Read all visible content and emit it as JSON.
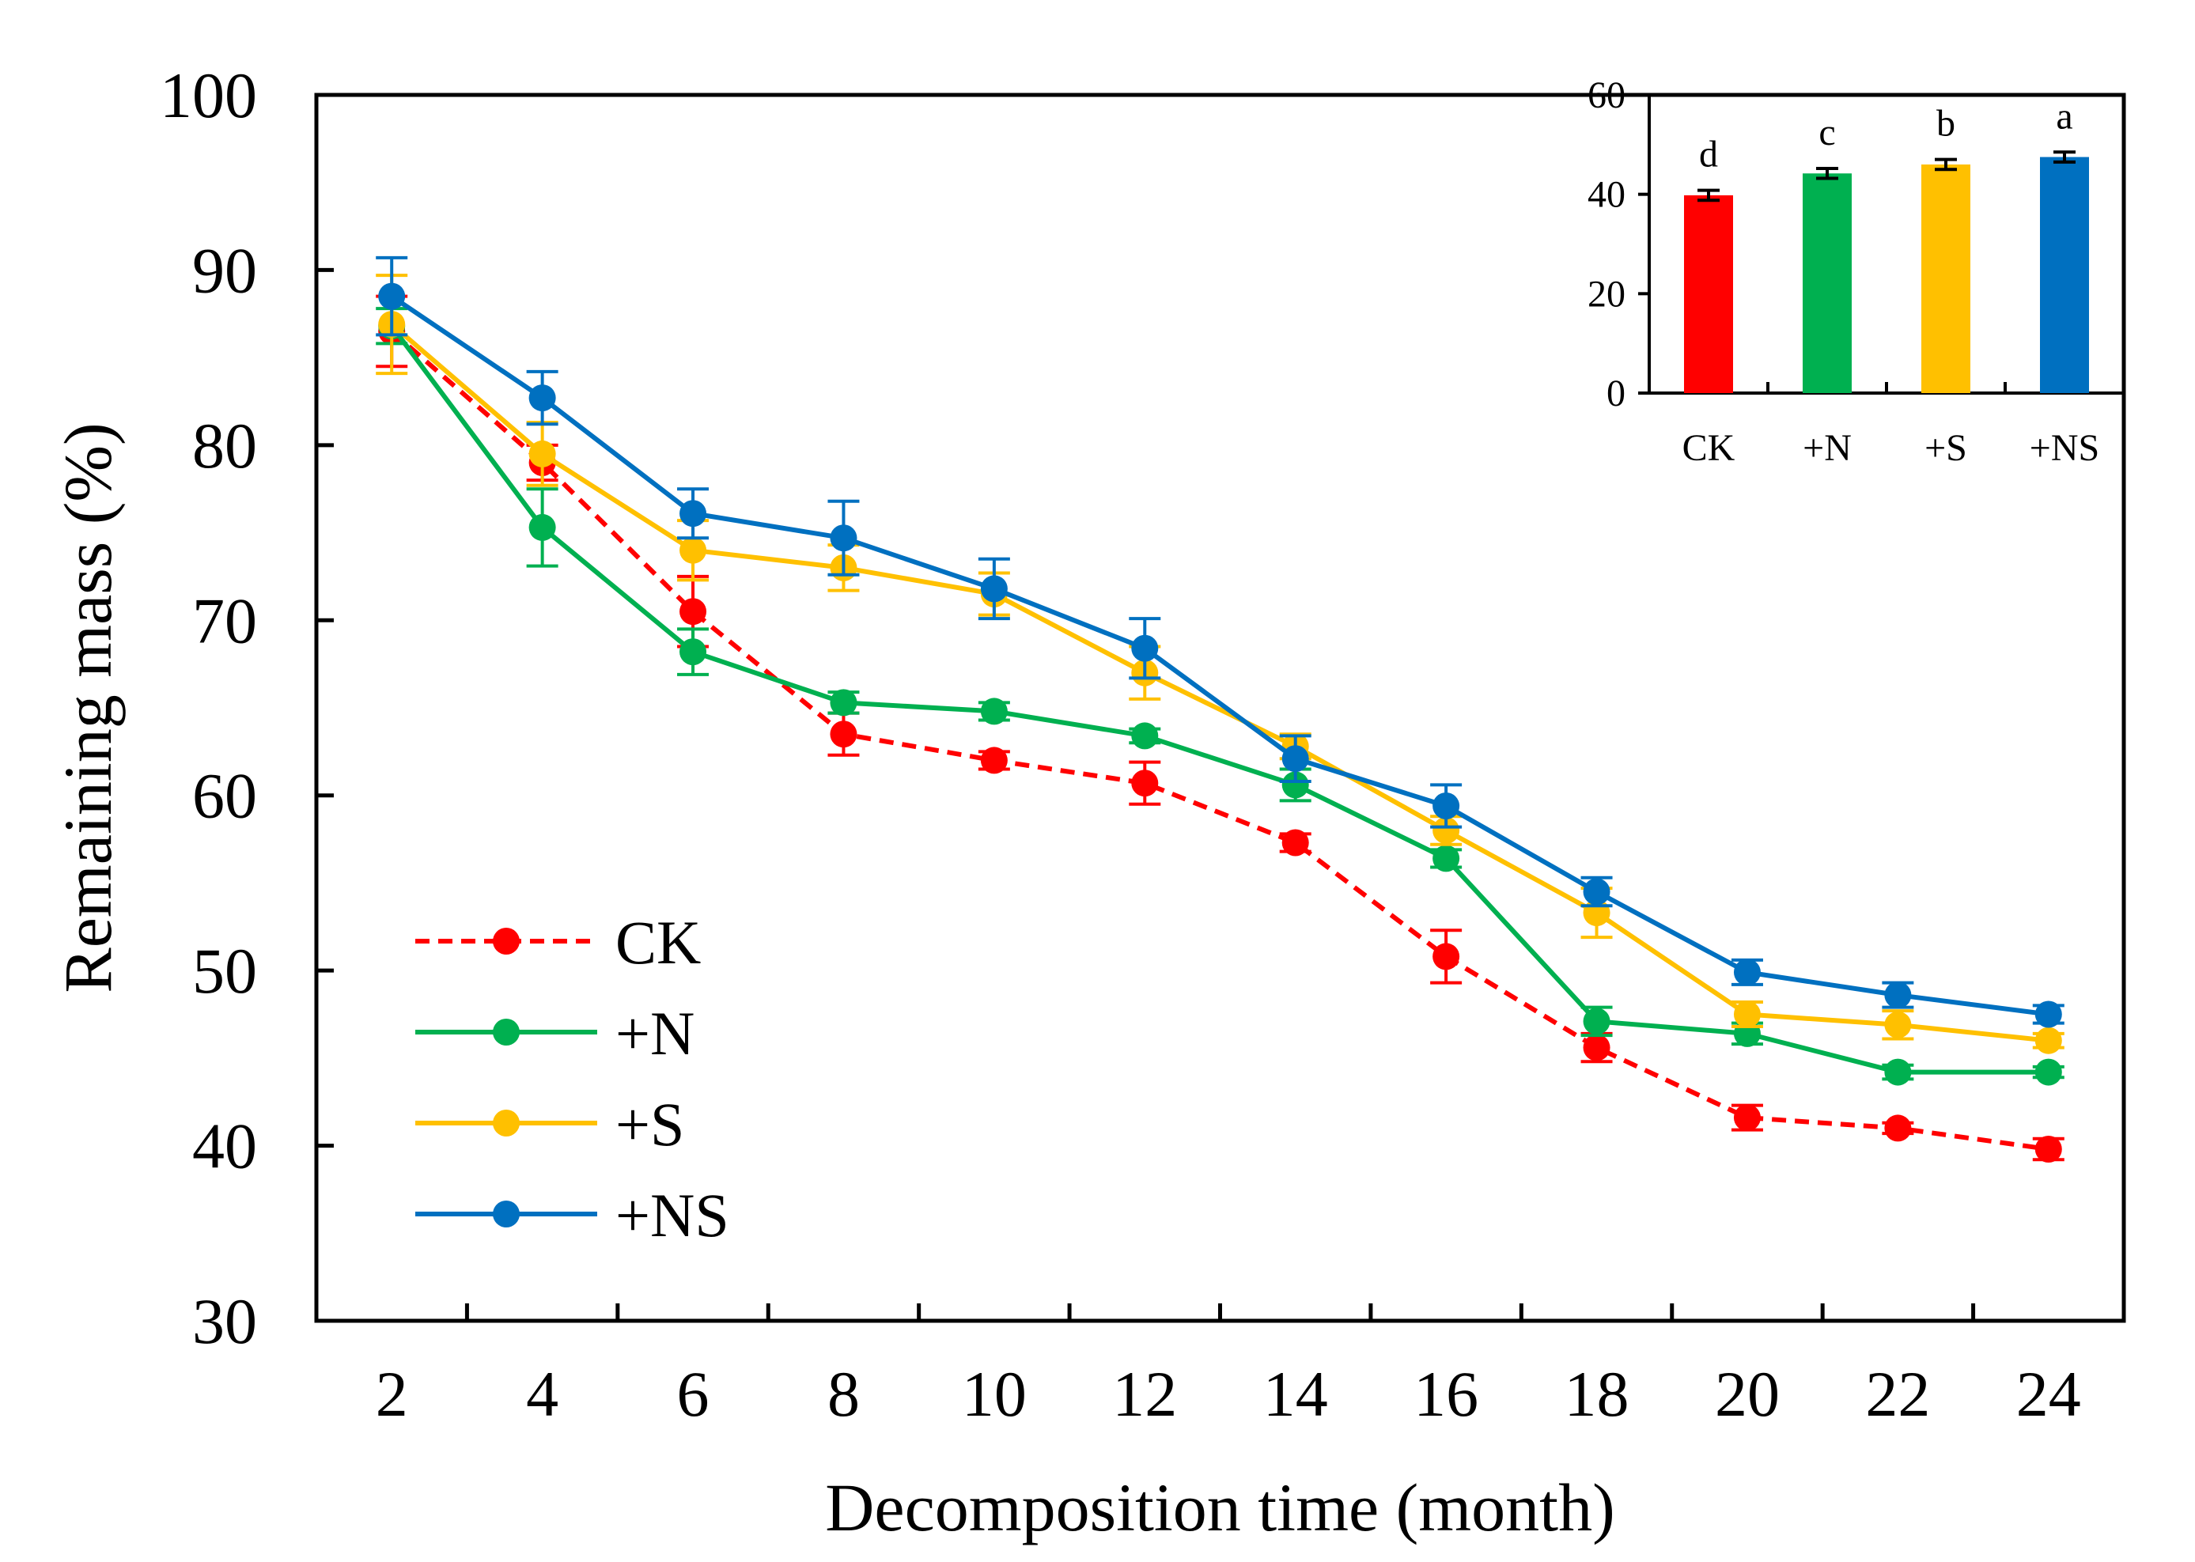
{
  "chart_data": [
    {
      "type": "line",
      "title": "",
      "xlabel": "Decomposition time (month)",
      "ylabel": "Remaining mass (%)",
      "xlim": [
        1,
        25
      ],
      "ylim": [
        30,
        100
      ],
      "xticks": [
        2,
        4,
        6,
        8,
        10,
        12,
        14,
        16,
        18,
        20,
        22,
        24
      ],
      "yticks": [
        30,
        40,
        50,
        60,
        70,
        80,
        90,
        100
      ],
      "x": [
        2,
        4,
        6,
        8,
        10,
        12,
        14,
        16,
        18,
        20,
        22,
        24
      ],
      "grid": false,
      "legend": "bottom-left",
      "series": [
        {
          "name": "CK",
          "color": "#FF0000",
          "dashed": true,
          "values": [
            86.5,
            79.0,
            70.5,
            63.5,
            62.0,
            60.7,
            57.3,
            50.8,
            45.6,
            41.6,
            41.0,
            39.8
          ],
          "errors": [
            2.0,
            1.0,
            2.0,
            1.2,
            0.5,
            1.2,
            0.5,
            1.5,
            0.8,
            0.7,
            0.3,
            0.6
          ]
        },
        {
          "name": "+N",
          "color": "#00B050",
          "dashed": false,
          "values": [
            86.8,
            75.3,
            68.2,
            65.3,
            64.8,
            63.4,
            60.6,
            56.4,
            47.1,
            46.4,
            44.2,
            44.2
          ],
          "errors": [
            1.0,
            2.2,
            1.3,
            0.6,
            0.5,
            0.4,
            0.9,
            0.5,
            0.8,
            0.6,
            0.4,
            0.3
          ]
        },
        {
          "name": "+S",
          "color": "#FFC000",
          "dashed": false,
          "values": [
            86.9,
            79.5,
            74.0,
            73.0,
            71.5,
            67.0,
            62.8,
            58.0,
            53.3,
            47.5,
            46.9,
            46.0
          ],
          "errors": [
            2.8,
            1.8,
            1.7,
            1.3,
            1.2,
            1.5,
            0.7,
            0.8,
            1.4,
            0.7,
            0.8,
            0.4
          ]
        },
        {
          "name": "+NS",
          "color": "#0070C0",
          "dashed": false,
          "values": [
            88.5,
            82.7,
            76.1,
            74.7,
            71.8,
            68.4,
            62.1,
            59.4,
            54.5,
            49.9,
            48.6,
            47.5
          ],
          "errors": [
            2.2,
            1.5,
            1.4,
            2.1,
            1.7,
            1.7,
            1.3,
            1.2,
            0.8,
            0.7,
            0.7,
            0.5
          ]
        }
      ]
    },
    {
      "type": "bar",
      "title": "",
      "xlabel": "",
      "ylabel": "",
      "ylim": [
        0,
        60
      ],
      "yticks": [
        0,
        20,
        40,
        60
      ],
      "categories": [
        "CK",
        "+N",
        "+S",
        "+NS"
      ],
      "values": [
        39.8,
        44.2,
        46.0,
        47.5
      ],
      "errors": [
        1.0,
        1.0,
        1.0,
        1.0
      ],
      "colors": [
        "#FF0000",
        "#00B050",
        "#FFC000",
        "#0070C0"
      ],
      "annotations": [
        "d",
        "c",
        "b",
        "a"
      ]
    }
  ]
}
